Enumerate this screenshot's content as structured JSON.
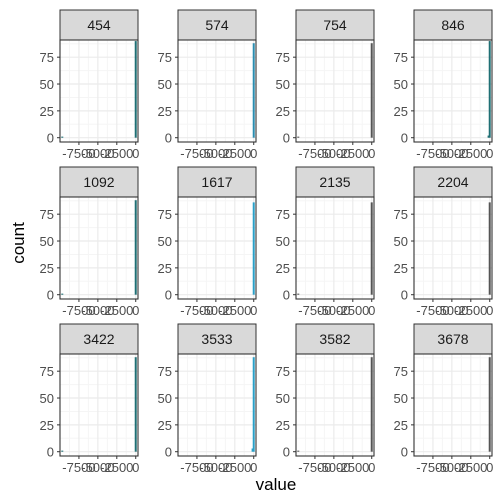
{
  "chart_data": {
    "type": "bar",
    "layout": "facet_wrap",
    "xlabel": "value",
    "ylabel": "count",
    "xlim": [
      -10000,
      300
    ],
    "ylim": [
      -4,
      91
    ],
    "x_ticks": [
      -7500,
      -5000,
      -2500,
      0
    ],
    "x_tick_labels": [
      "-7500",
      "-5000",
      "-2500",
      "0"
    ],
    "y_ticks": [
      0,
      25,
      50,
      75
    ],
    "y_tick_labels": [
      "0",
      "25",
      "50",
      "75"
    ],
    "grid": true,
    "colors": {
      "strip_fill": "#d9d9d9",
      "strip_border": "#333333",
      "grid_major": "#ebebeb",
      "grid_minor": "#f5f5f5",
      "panel_border": "#333333",
      "axis_text": "#4d4d4d",
      "title_text": "#000000"
    },
    "panels": [
      {
        "label": "454",
        "bars": [
          {
            "x": 0,
            "count": 90,
            "color": "#1f6f74"
          },
          {
            "x": -9700,
            "count": 1,
            "color": "#1f6f74"
          }
        ]
      },
      {
        "label": "574",
        "bars": [
          {
            "x": 0,
            "count": 88,
            "color": "#2a8db0"
          }
        ]
      },
      {
        "label": "754",
        "bars": [
          {
            "x": 0,
            "count": 88,
            "color": "#555555"
          },
          {
            "x": -9700,
            "count": 1,
            "color": "#555555"
          }
        ]
      },
      {
        "label": "846",
        "bars": [
          {
            "x": 0,
            "count": 90,
            "color": "#1f6f74"
          },
          {
            "x": -150,
            "count": 2,
            "color": "#1f6f74"
          }
        ]
      },
      {
        "label": "1092",
        "bars": [
          {
            "x": 0,
            "count": 88,
            "color": "#1f6f74"
          },
          {
            "x": -9700,
            "count": 1,
            "color": "#1f6f74"
          }
        ]
      },
      {
        "label": "1617",
        "bars": [
          {
            "x": 0,
            "count": 86,
            "color": "#2aa0c8"
          }
        ]
      },
      {
        "label": "2135",
        "bars": [
          {
            "x": 0,
            "count": 86,
            "color": "#555555"
          },
          {
            "x": -9700,
            "count": 1,
            "color": "#555555"
          }
        ]
      },
      {
        "label": "2204",
        "bars": [
          {
            "x": 0,
            "count": 86,
            "color": "#555555"
          }
        ]
      },
      {
        "label": "3422",
        "bars": [
          {
            "x": 0,
            "count": 88,
            "color": "#1f6f74"
          },
          {
            "x": -9700,
            "count": 1,
            "color": "#1f6f74"
          }
        ]
      },
      {
        "label": "3533",
        "bars": [
          {
            "x": 0,
            "count": 88,
            "color": "#2aa0c8"
          },
          {
            "x": -150,
            "count": 3,
            "color": "#2aa0c8"
          }
        ]
      },
      {
        "label": "3582",
        "bars": [
          {
            "x": 0,
            "count": 88,
            "color": "#555555"
          },
          {
            "x": -9700,
            "count": 1,
            "color": "#555555"
          }
        ]
      },
      {
        "label": "3678",
        "bars": [
          {
            "x": 0,
            "count": 88,
            "color": "#555555"
          }
        ]
      }
    ]
  }
}
